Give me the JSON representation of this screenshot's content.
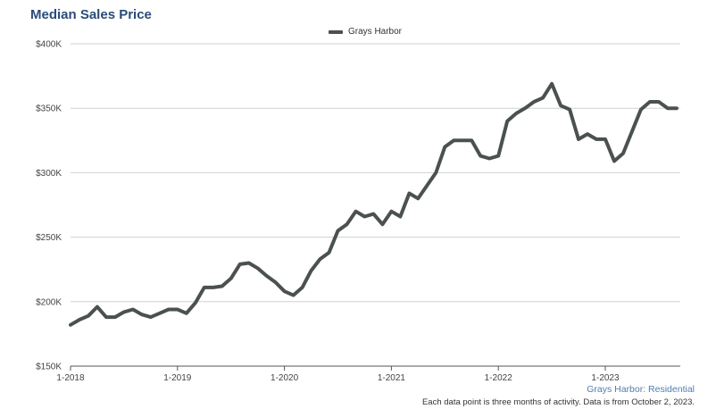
{
  "title": "Median Sales Price",
  "legend": {
    "label": "Grays Harbor"
  },
  "footer": {
    "source": "Grays Harbor: Residential",
    "note": "Each data point is three months of activity. Data is from October 2, 2023."
  },
  "colors": {
    "line": "#4a5150",
    "grid": "#d0d0d0",
    "axis": "#555555",
    "title": "#2a4b78"
  },
  "chart_data": {
    "type": "line",
    "title": "Median Sales Price",
    "xlabel": "",
    "ylabel": "",
    "ylim": [
      150000,
      400000
    ],
    "y_ticks": [
      {
        "value": 150000,
        "label": "$150K"
      },
      {
        "value": 200000,
        "label": "$200K"
      },
      {
        "value": 250000,
        "label": "$250K"
      },
      {
        "value": 300000,
        "label": "$300K"
      },
      {
        "value": 350000,
        "label": "$350K"
      },
      {
        "value": 400000,
        "label": "$400K"
      }
    ],
    "x_ticks": [
      {
        "value": "2018-01",
        "label": "1-2018"
      },
      {
        "value": "2019-01",
        "label": "1-2019"
      },
      {
        "value": "2020-01",
        "label": "1-2020"
      },
      {
        "value": "2021-01",
        "label": "1-2021"
      },
      {
        "value": "2022-01",
        "label": "1-2022"
      },
      {
        "value": "2023-01",
        "label": "1-2023"
      }
    ],
    "grid": true,
    "legend_position": "top-center",
    "series": [
      {
        "name": "Grays Harbor",
        "x": [
          "2018-01",
          "2018-02",
          "2018-03",
          "2018-04",
          "2018-05",
          "2018-06",
          "2018-07",
          "2018-08",
          "2018-09",
          "2018-10",
          "2018-11",
          "2018-12",
          "2019-01",
          "2019-02",
          "2019-03",
          "2019-04",
          "2019-05",
          "2019-06",
          "2019-07",
          "2019-08",
          "2019-09",
          "2019-10",
          "2019-11",
          "2019-12",
          "2020-01",
          "2020-02",
          "2020-03",
          "2020-04",
          "2020-05",
          "2020-06",
          "2020-07",
          "2020-08",
          "2020-09",
          "2020-10",
          "2020-11",
          "2020-12",
          "2021-01",
          "2021-02",
          "2021-03",
          "2021-04",
          "2021-05",
          "2021-06",
          "2021-07",
          "2021-08",
          "2021-09",
          "2021-10",
          "2021-11",
          "2021-12",
          "2022-01",
          "2022-02",
          "2022-03",
          "2022-04",
          "2022-05",
          "2022-06",
          "2022-07",
          "2022-08",
          "2022-09",
          "2022-10",
          "2022-11",
          "2022-12",
          "2023-01",
          "2023-02",
          "2023-03",
          "2023-04",
          "2023-05",
          "2023-06",
          "2023-07",
          "2023-08",
          "2023-09"
        ],
        "values": [
          182000,
          186000,
          189000,
          196000,
          188000,
          188000,
          192000,
          194000,
          190000,
          188000,
          191000,
          194000,
          194000,
          191000,
          199000,
          211000,
          211000,
          212000,
          218000,
          229000,
          230000,
          226000,
          220000,
          215000,
          208000,
          205000,
          211000,
          224000,
          233000,
          238000,
          255000,
          260000,
          270000,
          266000,
          268000,
          260000,
          270000,
          266000,
          284000,
          280000,
          290000,
          300000,
          320000,
          325000,
          325000,
          325000,
          313000,
          311000,
          313000,
          340000,
          346000,
          350000,
          355000,
          358000,
          369000,
          352000,
          349000,
          326000,
          330000,
          326000,
          326000,
          309000,
          315000,
          332000,
          349000,
          355000,
          355000,
          350000,
          350000
        ]
      }
    ]
  }
}
